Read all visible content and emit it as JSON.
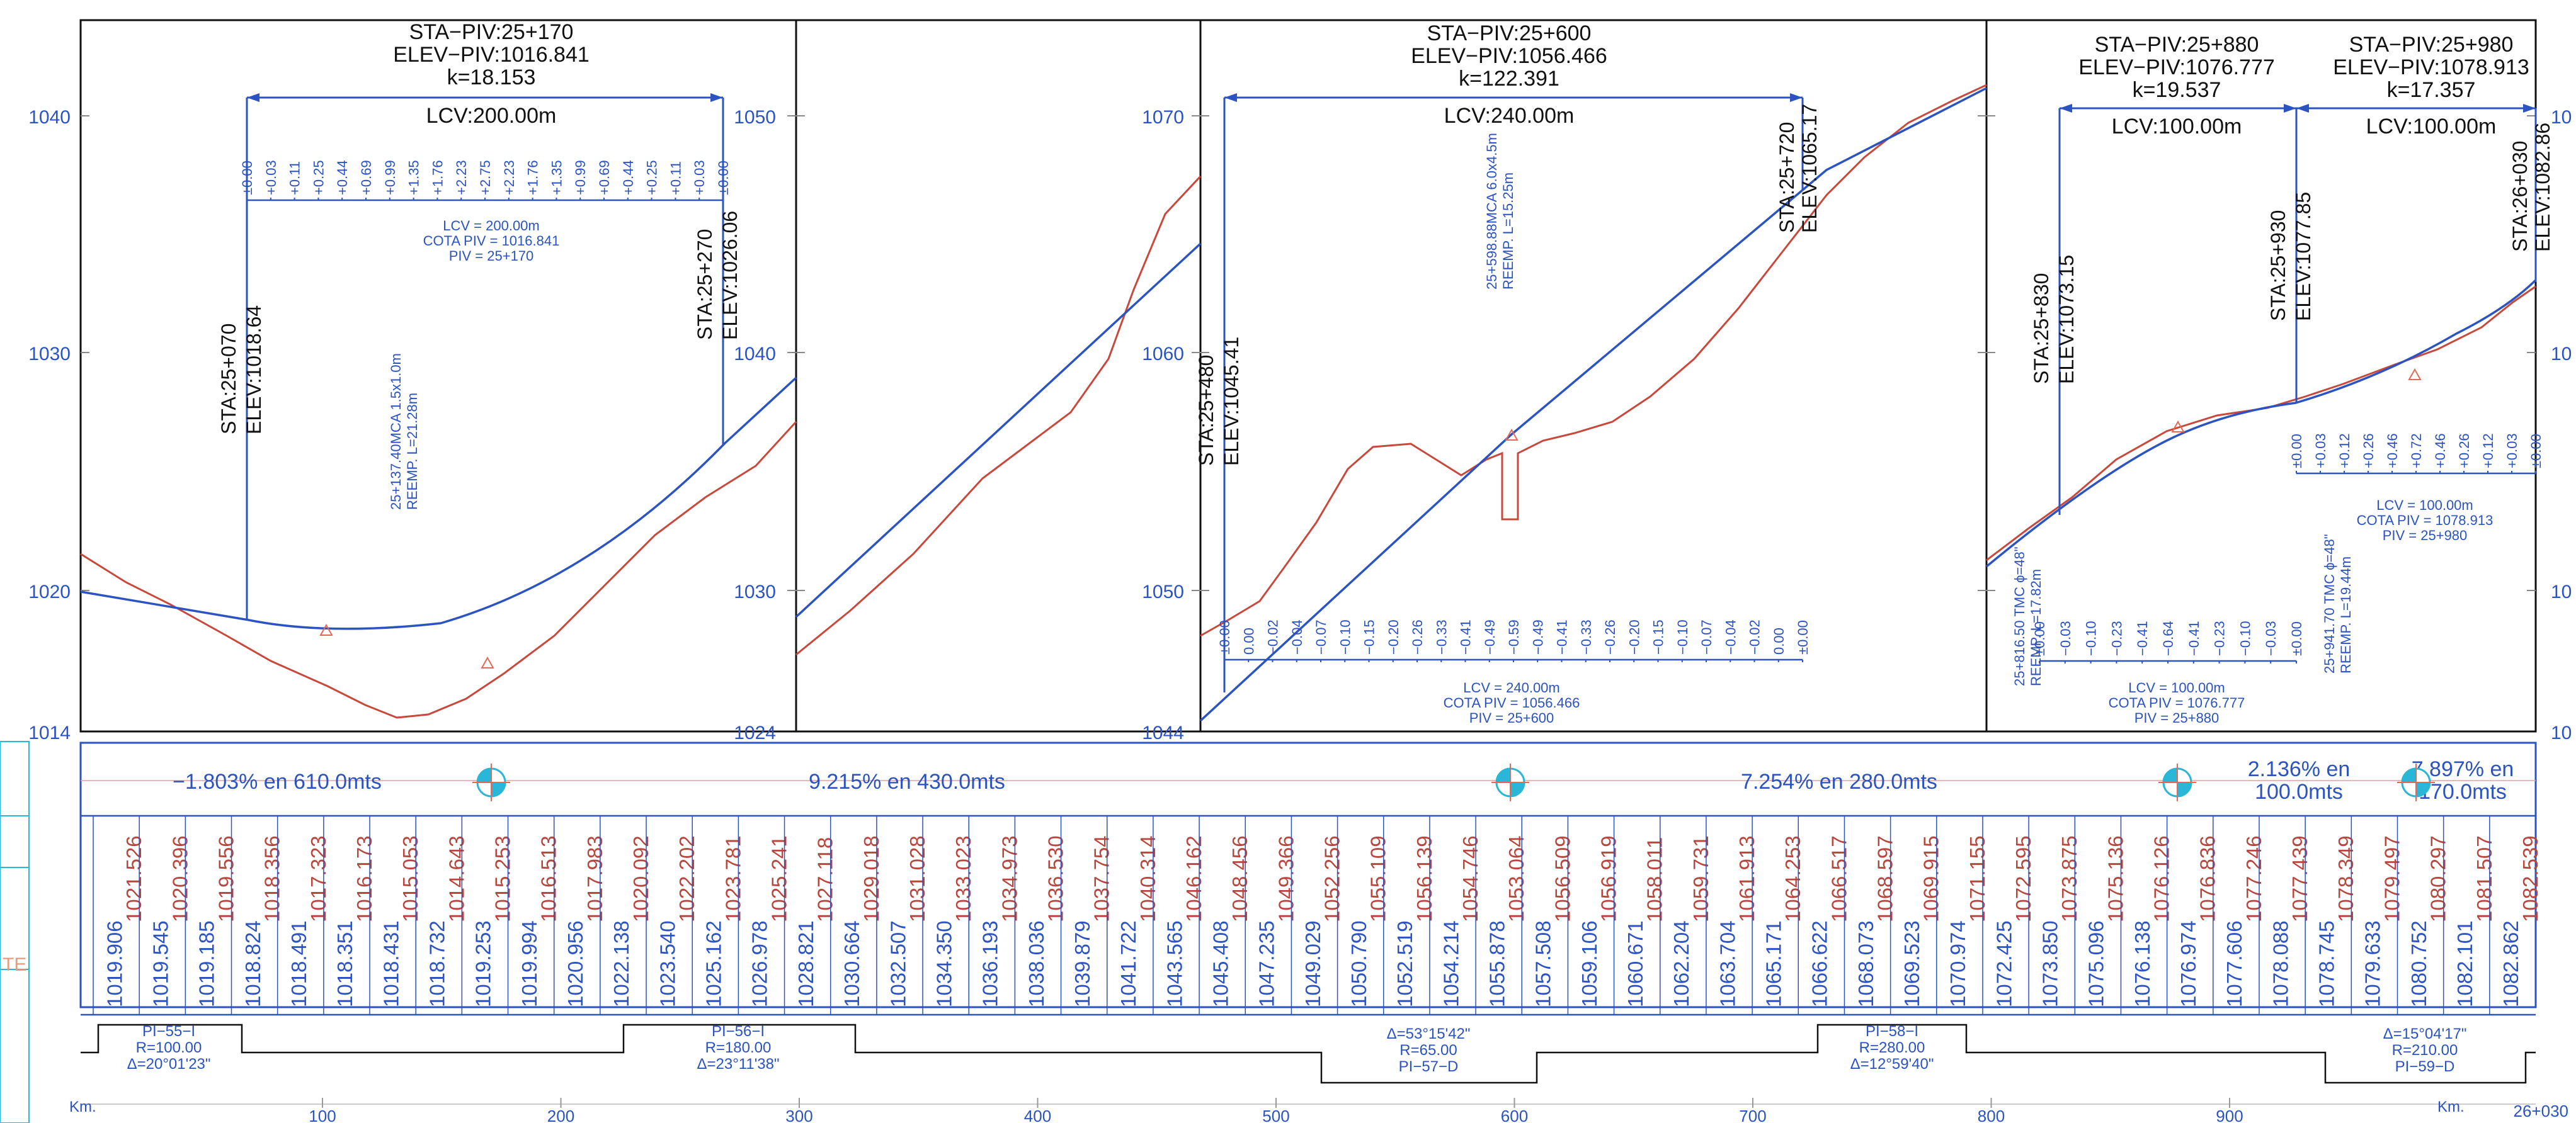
{
  "colors": {
    "grade": "#2b53c2",
    "terrain": "#c9483c",
    "frame": "#111111",
    "text": "#111111",
    "label": "#2b53c2",
    "cota": "#b9463c",
    "marker": "#2ab6d6"
  },
  "y_axis": {
    "panel1": [
      "1040",
      "1030",
      "1020",
      "1014"
    ],
    "panel2": [
      "1050",
      "1040",
      "1030",
      "1024"
    ],
    "panel3": [
      "1070",
      "1060",
      "1050",
      "1044"
    ],
    "panel4_right": [
      "10",
      "10",
      "10",
      "10"
    ]
  },
  "curves": [
    {
      "piv": "STA−PIV:25+170",
      "elev": "ELEV−PIV:1016.841",
      "k": "k=18.153",
      "lcv": "LCV:200.00m",
      "bc_sta": "STA:25+070",
      "bc_elev": "ELEV:1018.64",
      "ec_sta": "STA:25+270",
      "ec_elev": "ELEV:1026.06",
      "ordinates": [
        "±0.00",
        "+0.03",
        "+0.11",
        "+0.25",
        "+0.44",
        "+0.69",
        "+0.99",
        "+1.35",
        "+1.76",
        "+2.23",
        "+2.75",
        "+2.23",
        "+1.76",
        "+1.35",
        "+0.99",
        "+0.69",
        "+0.44",
        "+0.25",
        "+0.11",
        "+0.03",
        "±0.00"
      ],
      "note": [
        "LCV  =  200.00m",
        "COTA  PIV  =  1016.841",
        "PIV  =  25+170"
      ]
    },
    {
      "piv": "STA−PIV:25+600",
      "elev": "ELEV−PIV:1056.466",
      "k": "k=122.391",
      "lcv": "LCV:240.00m",
      "bc_sta": "STA:25+480",
      "bc_elev": "ELEV:1045.41",
      "ec_sta": "STA:25+720",
      "ec_elev": "ELEV:1065.17",
      "ordinates": [
        "±0.00",
        "0.00",
        "−0.02",
        "−0.04",
        "−0.07",
        "−0.10",
        "−0.15",
        "−0.20",
        "−0.26",
        "−0.33",
        "−0.41",
        "−0.49",
        "−0.59",
        "−0.49",
        "−0.41",
        "−0.33",
        "−0.26",
        "−0.20",
        "−0.15",
        "−0.10",
        "−0.07",
        "−0.04",
        "−0.02",
        "0.00",
        "±0.00"
      ],
      "note": [
        "LCV  =  240.00m",
        "COTA  PIV  =  1056.466",
        "PIV  =  25+600"
      ]
    },
    {
      "piv": "STA−PIV:25+880",
      "elev": "ELEV−PIV:1076.777",
      "k": "k=19.537",
      "lcv": "LCV:100.00m",
      "bc_sta": "STA:25+830",
      "bc_elev": "ELEV:1073.15",
      "ec_sta": "STA:25+930",
      "ec_elev": "ELEV:1077.85",
      "ordinates": [
        "±0.00",
        "−0.03",
        "−0.10",
        "−0.23",
        "−0.41",
        "−0.64",
        "−0.41",
        "−0.23",
        "−0.10",
        "−0.03",
        "±0.00"
      ],
      "note": [
        "LCV  =  100.00m",
        "COTA  PIV  =  1076.777",
        "PIV  =  25+880"
      ]
    },
    {
      "piv": "STA−PIV:25+980",
      "elev": "ELEV−PIV:1078.913",
      "k": "k=17.357",
      "lcv": "LCV:100.00m",
      "bc_sta": "",
      "bc_elev": "",
      "ec_sta": "STA:26+030",
      "ec_elev": "ELEV:1082.86",
      "ordinates": [
        "±0.00",
        "+0.03",
        "+0.12",
        "+0.26",
        "+0.46",
        "+0.72",
        "+0.46",
        "+0.26",
        "+0.12",
        "+0.03",
        "±0.00"
      ],
      "note": [
        "LCV  =  100.00m",
        "COTA  PIV  =  1078.913",
        "PIV  =  25+980"
      ]
    }
  ],
  "structures": [
    {
      "line1": "25+137.40MCA 1.5x1.0m",
      "line2": "REEMP.    L=21.28m"
    },
    {
      "line1": "25+598.88MCA 6.0x4.5m",
      "line2": "REEMP.    L=15.25m"
    },
    {
      "line1": "25+816.50  TMC  ϕ=48\"",
      "line2": "REEMP.    L=17.82m"
    },
    {
      "line1": "25+941.70  TMC  ϕ=48\"",
      "line2": "REEMP.    L=19.44m"
    }
  ],
  "grades": [
    {
      "text": "−1.803%  en  610.0mts"
    },
    {
      "text": "9.215%  en  430.0mts"
    },
    {
      "text": "7.254%  en  280.0mts"
    },
    {
      "text": "2.136%  en",
      "text2": "100.0mts"
    },
    {
      "text": "7.897%  en",
      "text2": "170.0mts"
    }
  ],
  "cota_terreno": [
    "1021.526",
    "1020.396",
    "1019.556",
    "1018.356",
    "1017.323",
    "1016.173",
    "1015.053",
    "1014.643",
    "1015.253",
    "1016.513",
    "1017.983",
    "1020.092",
    "1022.202",
    "1023.781",
    "1025.241",
    "1027.118",
    "1029.018",
    "1031.028",
    "1033.023",
    "1034.973",
    "1036.530",
    "1037.754",
    "1040.314",
    "1046.162",
    "1048.456",
    "1049.366",
    "1052.256",
    "1055.109",
    "1056.139",
    "1054.746",
    "1053.064",
    "1056.509",
    "1056.919",
    "1058.011",
    "1059.731",
    "1061.913",
    "1064.253",
    "1066.517",
    "1068.597",
    "1069.915",
    "1071.155",
    "1072.595",
    "1073.875",
    "1075.136",
    "1076.126",
    "1076.836",
    "1077.246",
    "1077.439",
    "1078.349",
    "1079.497",
    "1080.297",
    "1081.507",
    "1082.539"
  ],
  "cota_rasante": [
    "1019.906",
    "1019.545",
    "1019.185",
    "1018.824",
    "1018.491",
    "1018.351",
    "1018.431",
    "1018.732",
    "1019.253",
    "1019.994",
    "1020.956",
    "1022.138",
    "1023.540",
    "1025.162",
    "1026.978",
    "1028.821",
    "1030.664",
    "1032.507",
    "1034.350",
    "1036.193",
    "1038.036",
    "1039.879",
    "1041.722",
    "1043.565",
    "1045.408",
    "1047.235",
    "1049.029",
    "1050.790",
    "1052.519",
    "1054.214",
    "1055.878",
    "1057.508",
    "1059.106",
    "1060.671",
    "1062.204",
    "1063.704",
    "1065.171",
    "1066.622",
    "1068.073",
    "1069.523",
    "1070.974",
    "1072.425",
    "1073.850",
    "1075.096",
    "1076.138",
    "1076.974",
    "1077.606",
    "1078.088",
    "1078.745",
    "1079.633",
    "1080.752",
    "1082.101",
    "1082.862"
  ],
  "alignment": [
    {
      "l1": "PI−55−I",
      "l2": "R=100.00",
      "l3": "Δ=20°01'23\""
    },
    {
      "l1": "PI−56−I",
      "l2": "R=180.00",
      "l3": "Δ=23°11'38\""
    },
    {
      "l1": "Δ=53°15'42\"",
      "l2": "R=65.00",
      "l3": "PI−57−D"
    },
    {
      "l1": "PI−58−I",
      "l2": "R=280.00",
      "l3": "Δ=12°59'40\""
    },
    {
      "l1": "Δ=15°04'17\"",
      "l2": "R=210.00",
      "l3": "PI−59−D"
    }
  ],
  "km_axis": {
    "prefix": "Km.",
    "ticks": [
      "100",
      "200",
      "300",
      "400",
      "500",
      "600",
      "700",
      "800",
      "900"
    ],
    "end_prefix": "Km.",
    "end": "26+030"
  },
  "left_stub": "TE"
}
